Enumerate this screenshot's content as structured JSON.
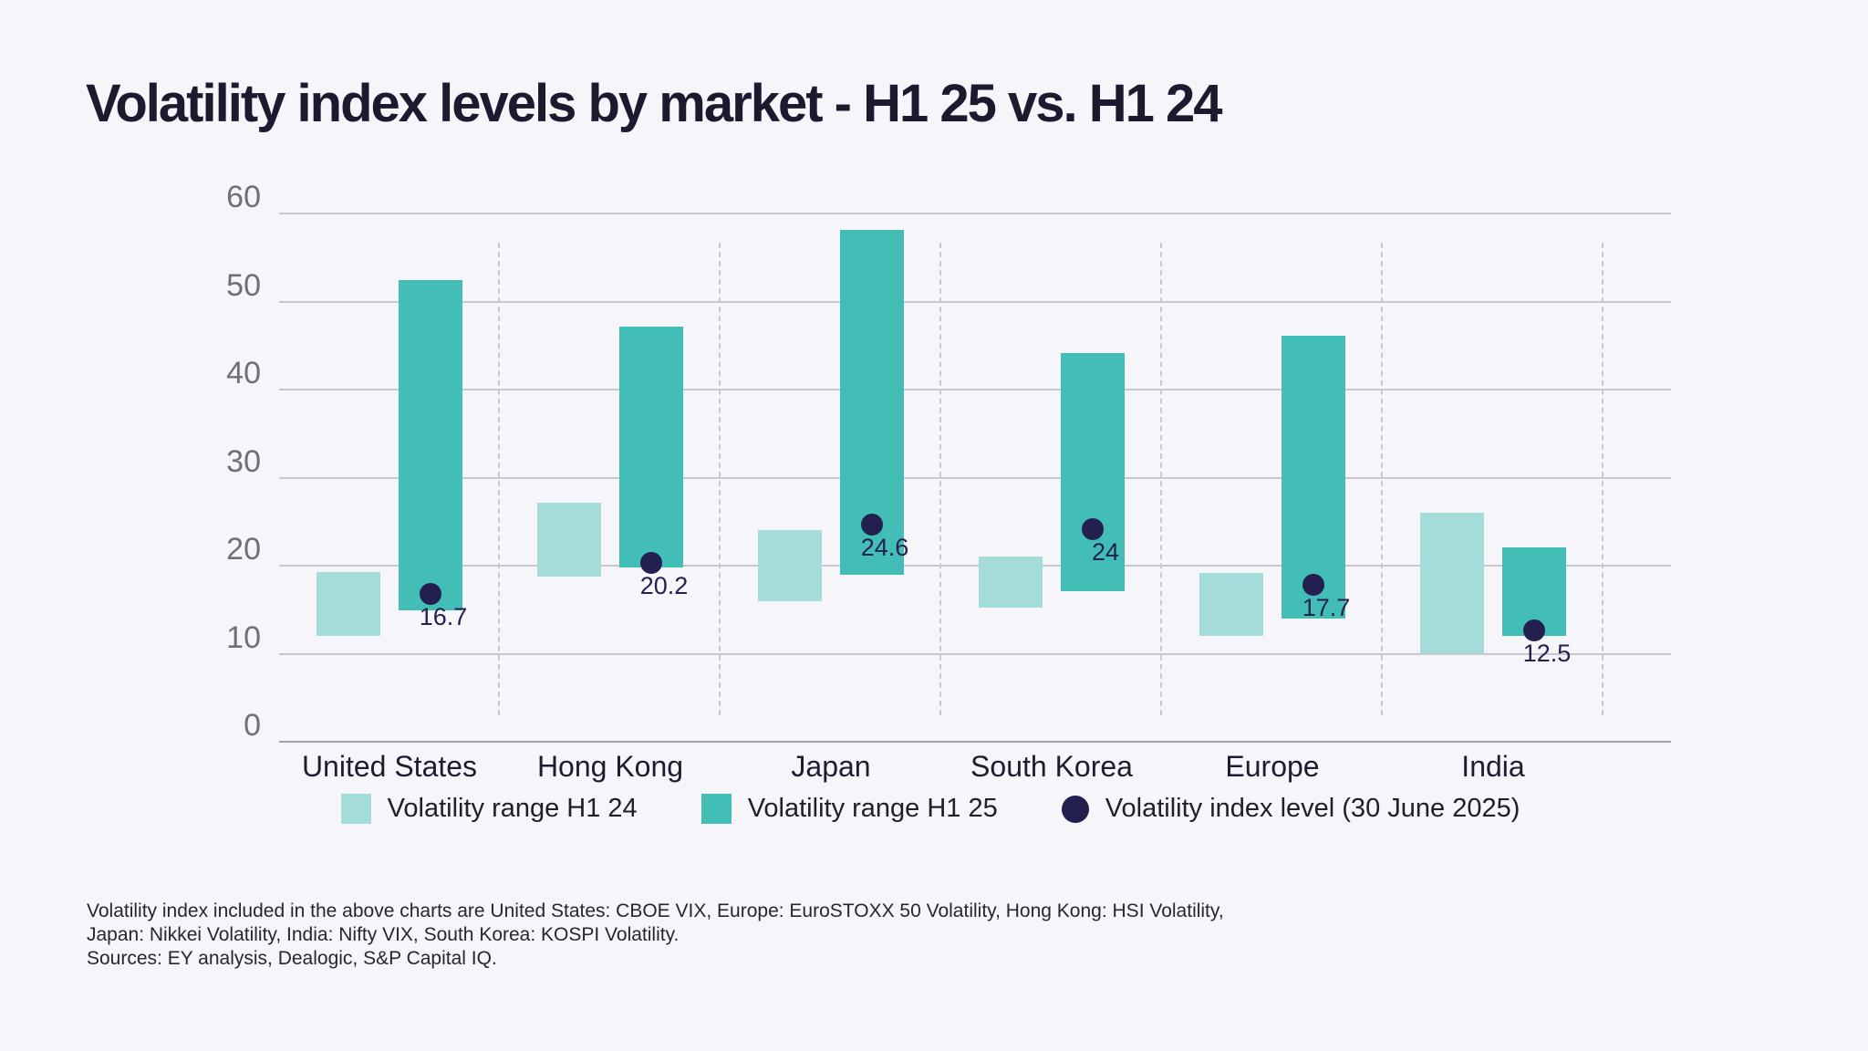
{
  "title": "Volatility index levels by market - H1 25 vs. H1 24",
  "chart_data": {
    "type": "range-bar",
    "title": "Volatility index levels by market - H1 25 vs. H1 24",
    "categories": [
      "United States",
      "Hong Kong",
      "Japan",
      "South Korea",
      "Europe",
      "India"
    ],
    "ylim": [
      0,
      60
    ],
    "yticks": [
      0,
      10,
      20,
      30,
      40,
      50,
      60
    ],
    "grid": "horizontal",
    "legend_position": "bottom",
    "series": [
      {
        "name": "Volatility range H1 24",
        "color": "#a3dcd9",
        "ranges": [
          [
            11.9,
            19.2
          ],
          [
            18.7,
            27.1
          ],
          [
            15.9,
            23.9
          ],
          [
            15.1,
            20.9
          ],
          [
            11.9,
            19.1
          ],
          [
            9.9,
            25.9
          ]
        ]
      },
      {
        "name": "Volatility range H1 25",
        "color": "#42beb7",
        "ranges": [
          [
            14.8,
            52.3
          ],
          [
            19.7,
            47.0
          ],
          [
            18.9,
            58.0
          ],
          [
            17.0,
            44.0
          ],
          [
            13.9,
            46.0
          ],
          [
            11.9,
            22.0
          ]
        ]
      }
    ],
    "points": {
      "name": "Volatility index level (30 June 2025)",
      "color": "#23204f",
      "values": [
        16.7,
        20.2,
        24.6,
        24,
        17.7,
        12.5
      ],
      "labels": [
        "16.7",
        "20.2",
        "24.6",
        "24",
        "17.7",
        "12.5"
      ]
    }
  },
  "footnotes": [
    "Volatility index included in the above charts are United States: CBOE VIX, Europe: EuroSTOXX 50 Volatility, Hong Kong: HSI Volatility,",
    "Japan: Nikkei Volatility, India: Nifty VIX, South Korea: KOSPI Volatility.",
    "Sources: EY analysis, Dealogic, S&P Capital IQ."
  ],
  "colors": {
    "background": "#f6f6fa",
    "title_text": "#1b1a2e",
    "gridline": "#c7c7cf",
    "zero_line": "#a3a3ac",
    "separator": "#c9c9d1",
    "tick_text": "#6f6f79",
    "category_text": "#1e1d30",
    "value_label_text": "#232052"
  }
}
